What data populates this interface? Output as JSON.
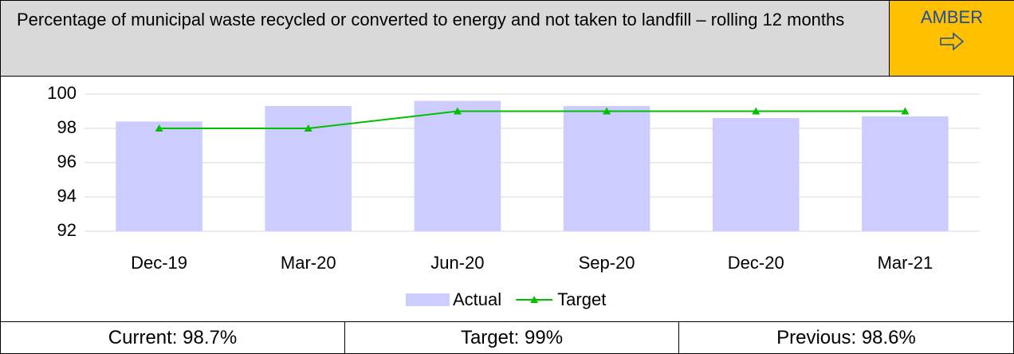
{
  "chart_data": {
    "type": "bar_line",
    "title": "Percentage of municipal waste recycled or converted to energy and not taken to landfill – rolling 12 months",
    "categories": [
      "Dec-19",
      "Mar-20",
      "Jun-20",
      "Sep-20",
      "Dec-20",
      "Mar-21"
    ],
    "series": [
      {
        "name": "Actual",
        "type": "bar",
        "color": "#ccccff",
        "values": [
          98.4,
          99.3,
          99.6,
          99.3,
          98.6,
          98.7
        ]
      },
      {
        "name": "Target",
        "type": "line",
        "color": "#00c000",
        "values": [
          98,
          98,
          99,
          99,
          99,
          99
        ]
      }
    ],
    "ylim": [
      92,
      100
    ],
    "yticks": [
      92,
      94,
      96,
      98,
      100
    ],
    "grid": true,
    "legend": "bottom"
  },
  "status": "AMBER",
  "footer": [
    "Current: 98.7%",
    "Target: 99%",
    "Previous: 98.6%"
  ]
}
